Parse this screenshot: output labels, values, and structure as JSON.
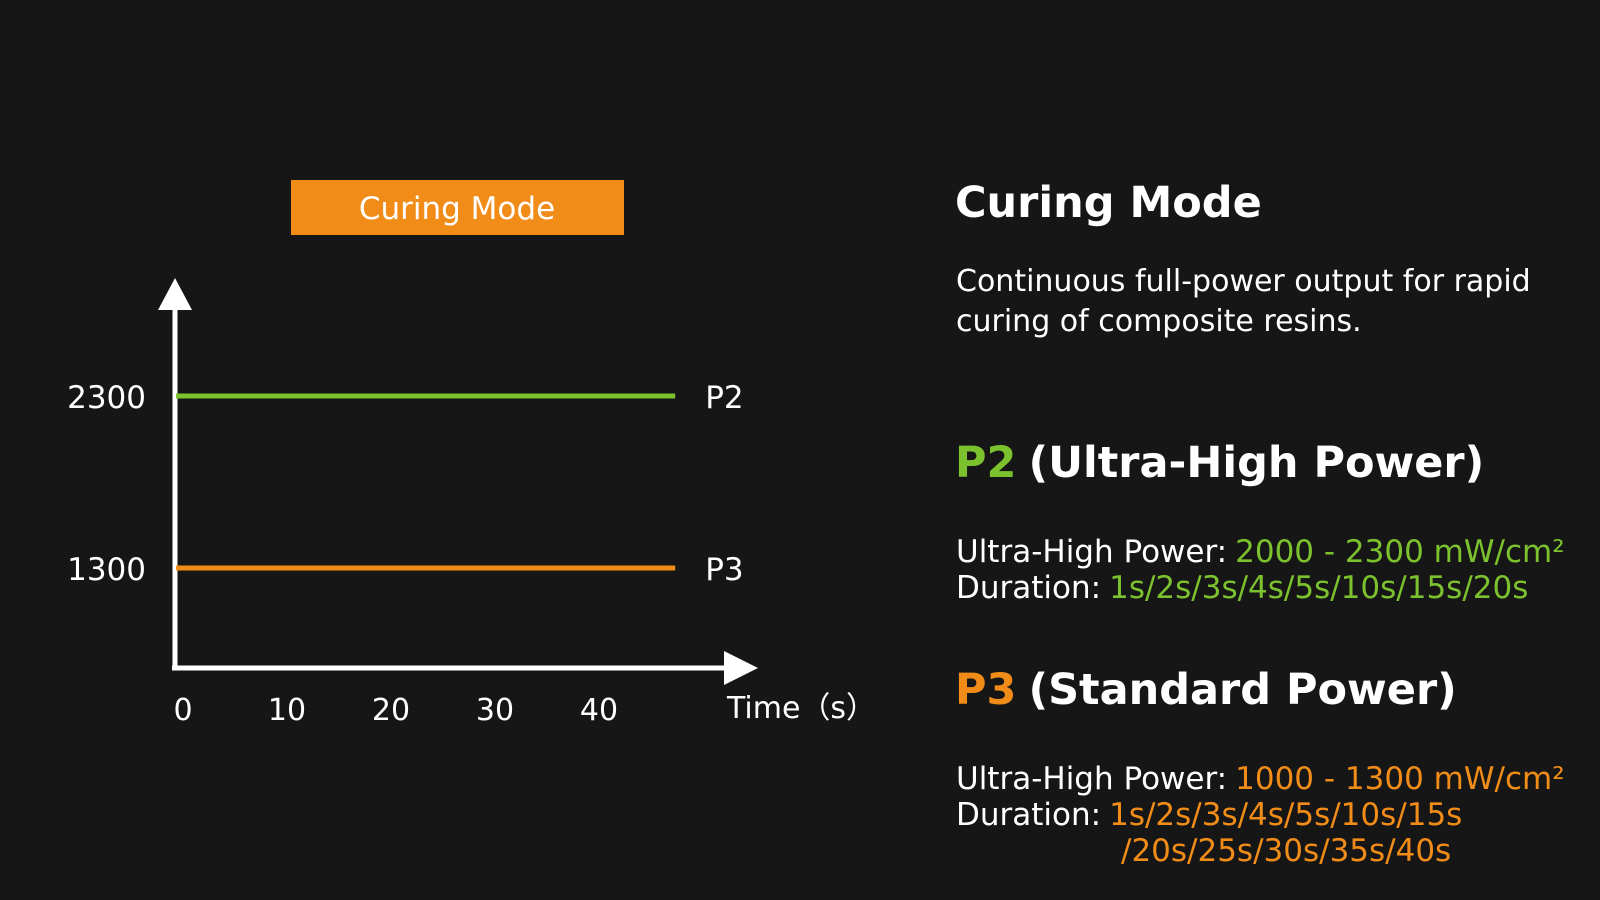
{
  "colors": {
    "background": "#161616",
    "text": "#ffffff",
    "p2_green": "#7cc12e",
    "p3_orange": "#f28c18"
  },
  "chart_data": {
    "type": "line",
    "title": "Curing Mode",
    "xlabel": "Time（s）",
    "ylabel": "",
    "x_ticks": [
      0,
      10,
      20,
      30,
      40
    ],
    "y_ticks": [
      1300,
      2300
    ],
    "xlim": [
      0,
      48
    ],
    "grid": false,
    "series": [
      {
        "name": "P2",
        "x": [
          0,
          48
        ],
        "y": [
          2300,
          2300
        ],
        "color": "#7cc12e"
      },
      {
        "name": "P3",
        "x": [
          0,
          48
        ],
        "y": [
          1300,
          1300
        ],
        "color": "#f28c18"
      }
    ]
  },
  "panel": {
    "title": "Curing Mode",
    "description": "Continuous full-power output for rapid curing of composite resins.",
    "modes": [
      {
        "code": "P2",
        "name": "(Ultra-High Power)",
        "power_label": "Ultra-High Power:",
        "power_value": "2000 - 2300 mW/cm²",
        "duration_label": "Duration:",
        "duration_value": "1s/2s/3s/4s/5s/10s/15s/20s",
        "duration_value_cont": ""
      },
      {
        "code": "P3",
        "name": "(Standard Power)",
        "power_label": "Ultra-High Power:",
        "power_value": "1000 - 1300 mW/cm²",
        "duration_label": "Duration:",
        "duration_value": "1s/2s/3s/4s/5s/10s/15s",
        "duration_value_cont": "/20s/25s/30s/35s/40s"
      }
    ]
  }
}
